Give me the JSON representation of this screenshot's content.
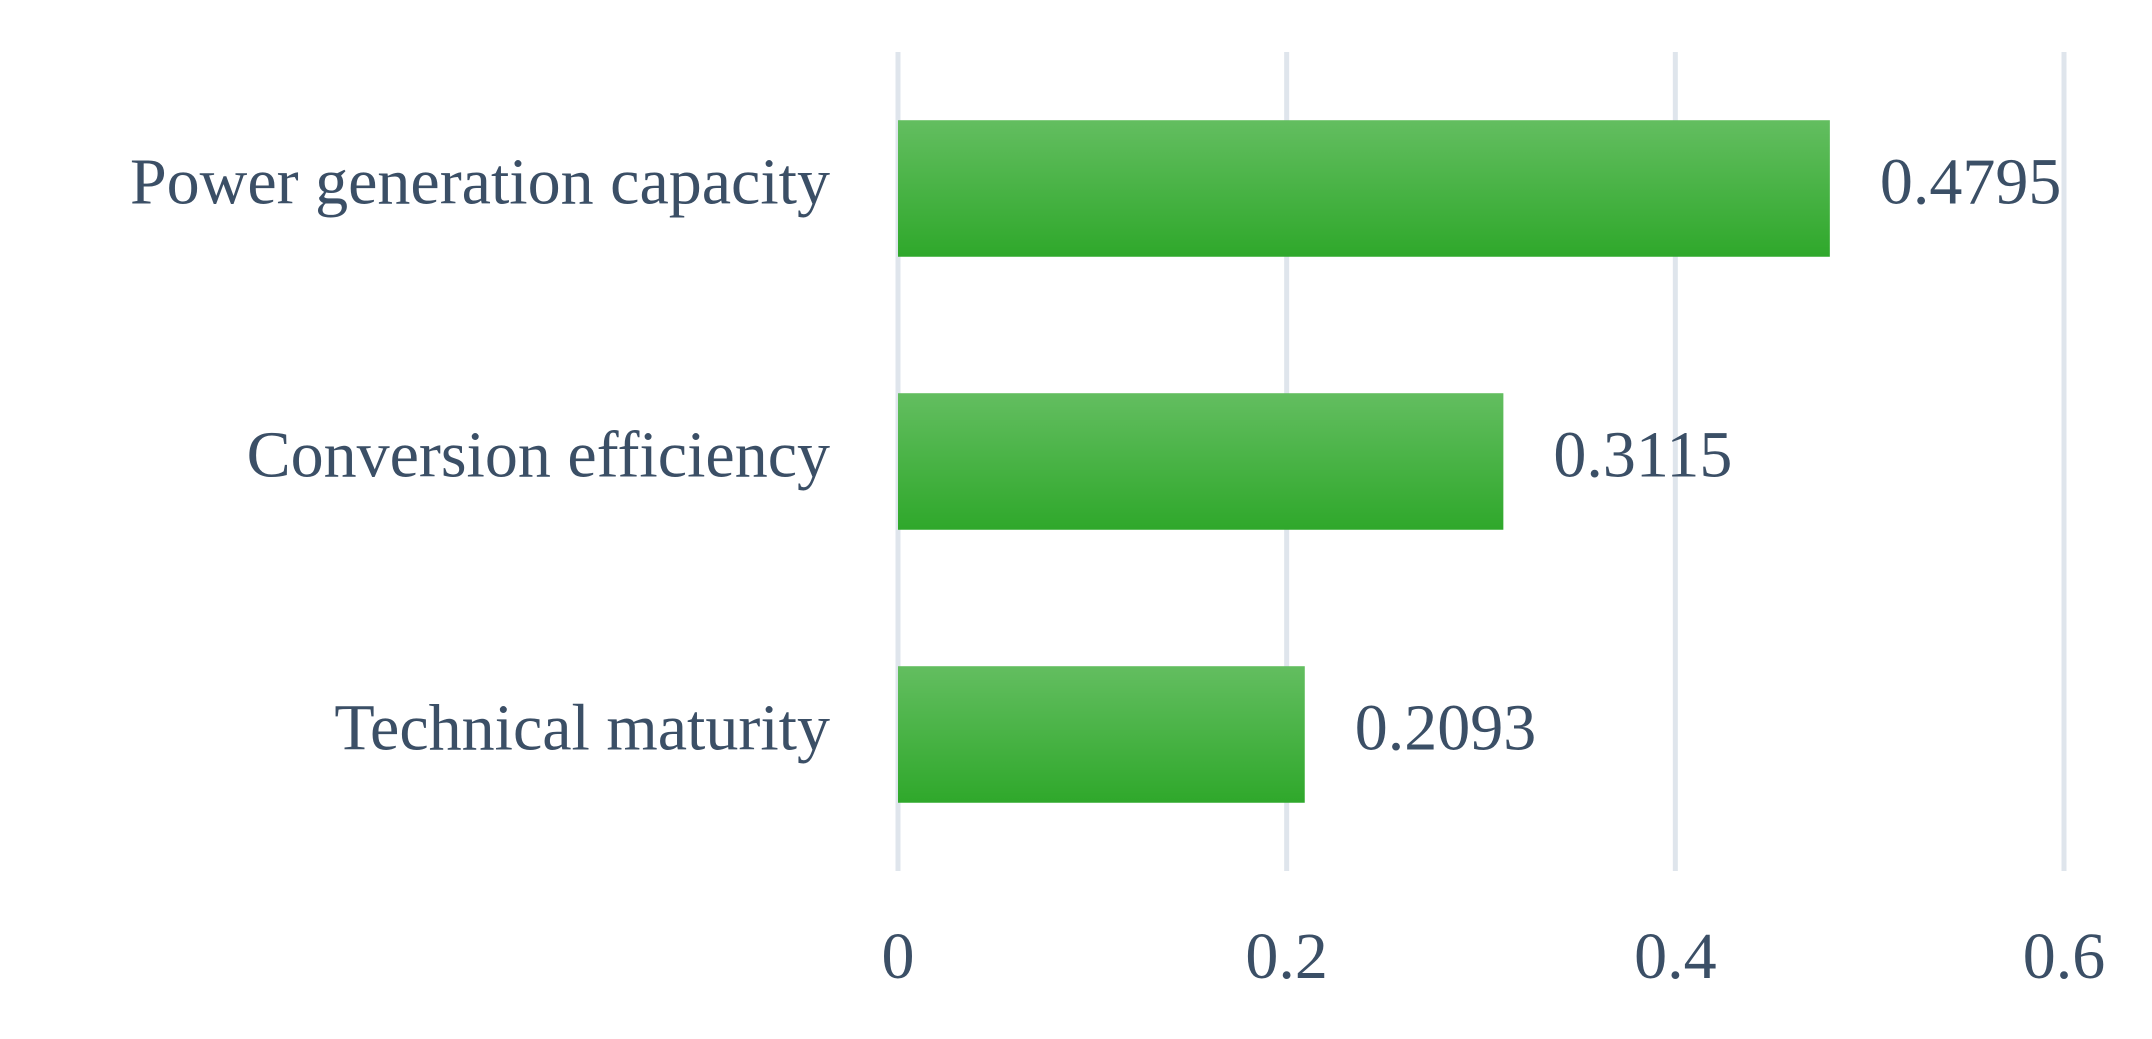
{
  "chart_data": {
    "type": "hbar",
    "categories": [
      "Power generation capacity",
      "Conversion efficiency",
      "Technical maturity"
    ],
    "values": [
      0.4795,
      0.3115,
      0.2093
    ],
    "color": "#2fa82b",
    "xlim": [
      0,
      0.6
    ],
    "xticks": [
      0,
      0.2,
      0.4,
      0.6
    ],
    "grid": true
  }
}
